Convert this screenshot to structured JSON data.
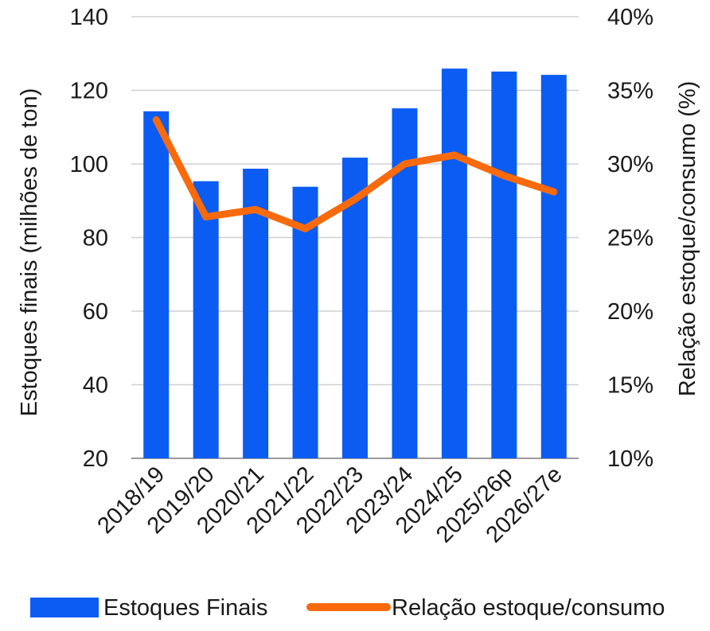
{
  "chart_data": {
    "type": "bar",
    "categories": [
      "2018/19",
      "2019/20",
      "2020/21",
      "2021/22",
      "2022/23",
      "2023/24",
      "2024/25",
      "2025/26p",
      "2026/27e"
    ],
    "series": [
      {
        "name": "Estoques Finais",
        "type": "bar",
        "axis": "left",
        "color": "#0b5cf2",
        "values": [
          114.3,
          95.3,
          98.7,
          93.8,
          101.7,
          115.1,
          125.9,
          125.1,
          124.2
        ]
      },
      {
        "name": "Relação estoque/consumo",
        "type": "line",
        "axis": "right",
        "color": "#f86a0c",
        "values": [
          33.0,
          26.4,
          26.9,
          25.6,
          27.6,
          30.0,
          30.6,
          29.2,
          28.1
        ]
      }
    ],
    "ylabel": "Estoques finais (milhões de ton)",
    "y2label": "Relação estoque/consumo (%)",
    "ylim": [
      20,
      140
    ],
    "y2lim": [
      10,
      40
    ],
    "yticks": [
      "20",
      "40",
      "60",
      "80",
      "100",
      "120",
      "140"
    ],
    "y2ticks": [
      "10%",
      "15%",
      "20%",
      "25%",
      "30%",
      "35%",
      "40%"
    ],
    "grid": true,
    "legend_position": "bottom"
  }
}
